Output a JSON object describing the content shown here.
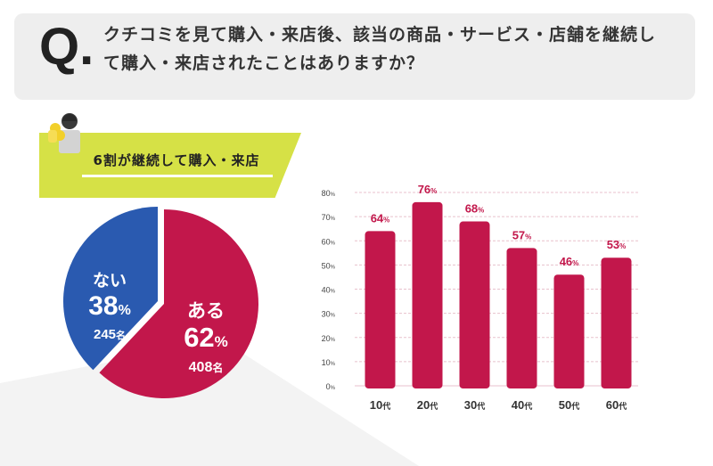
{
  "question": {
    "mark": "Q.",
    "text": "クチコミを見て購入・来店後、該当の商品・サービス・店舗を継続して購入・来店されたことはありますか？"
  },
  "banner": {
    "label": "6割が継続して購入・来店"
  },
  "colors": {
    "accent": "#c2174b",
    "blue": "#2a5ab0",
    "banner": "#d6e146",
    "grid": "#e8c1cc"
  },
  "chart_data": [
    {
      "type": "pie",
      "slices": [
        {
          "label": "ある",
          "percent": 62,
          "count": 408,
          "unit": "名",
          "color": "#c2174b"
        },
        {
          "label": "ない",
          "percent": 38,
          "count": 245,
          "unit": "名",
          "color": "#2a5ab0"
        }
      ]
    },
    {
      "type": "bar",
      "categories": [
        "10",
        "20",
        "30",
        "40",
        "50",
        "60"
      ],
      "category_suffix": "代",
      "values": [
        64,
        76,
        68,
        57,
        46,
        53
      ],
      "value_suffix": "%",
      "yticks": [
        0,
        10,
        20,
        30,
        40,
        50,
        60,
        70,
        80
      ],
      "ytick_suffix": "%",
      "ylim": [
        0,
        80
      ],
      "grid": true,
      "color": "#c2174b"
    }
  ]
}
